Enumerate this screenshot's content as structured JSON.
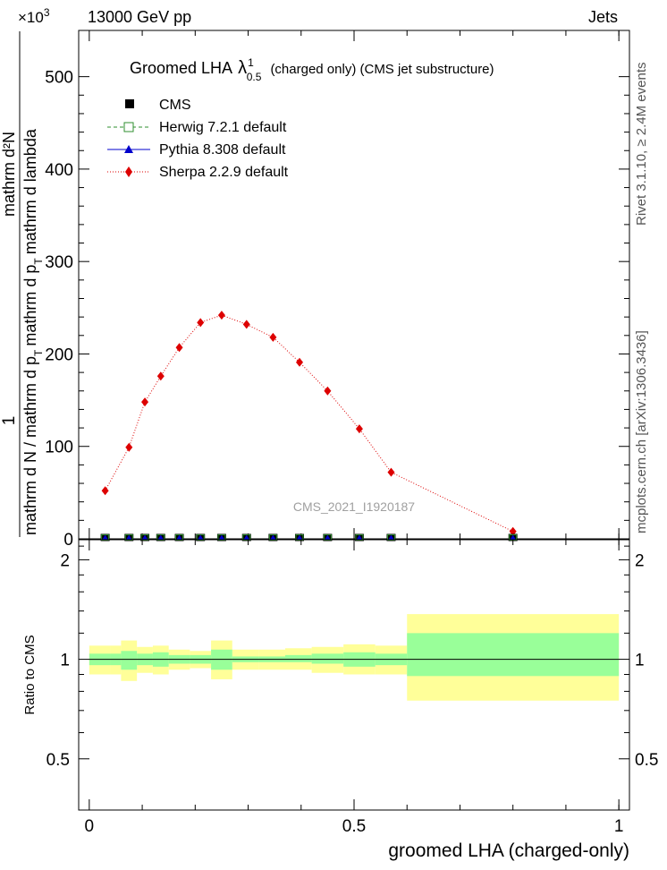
{
  "header": {
    "left": "13000 GeV pp",
    "right": "Jets",
    "exponent": "×10",
    "exponent_power": "3"
  },
  "side_text": {
    "rivet": "Rivet 3.1.10, ≥ 2.4M events",
    "mcplots": "mcplots.cern.ch [arXiv:1306.3436]"
  },
  "chart_data": [
    {
      "type": "line",
      "title": "Groomed LHA",
      "title_lambda": "λ",
      "title_sup": "1",
      "title_sub": "0.5",
      "title_suffix": "(charged only) (CMS jet substructure)",
      "ylabel_fraction_top": "1",
      "ylabel_bottom_lines": [
        "mathrm d N / mathrm d p",
        "T",
        "mathrm d p",
        "T",
        "mathrm d lambda"
      ],
      "ylabel_line1": "mathrm d N / mathrm d p",
      "ylabel_line1_sub": "T",
      "ylabel_line2": "mathrm d p",
      "ylabel_line2_sub": "T",
      "ylabel_line2_end": "mathrm d lambda",
      "ylabel_top_line": "mathrm d²N",
      "ylim": [
        0,
        550
      ],
      "y_unit_scale": 1000,
      "yticks": [
        0,
        100,
        200,
        300,
        400,
        500
      ],
      "ytick_labels": [
        "0",
        "100",
        "200",
        "300",
        "400",
        "500"
      ],
      "xlim": [
        -0.02,
        1.02
      ],
      "watermark": "CMS_2021_I1920187",
      "legend_position": "top-left",
      "legend": [
        {
          "name": "CMS",
          "color": "#000000",
          "marker": "square-filled"
        },
        {
          "name": "Herwig 7.2.1 default",
          "color": "#2f8f2f",
          "marker": "square-open",
          "dash": "dashed"
        },
        {
          "name": "Pythia 8.308 default",
          "color": "#0000cc",
          "marker": "triangle",
          "dash": "solid"
        },
        {
          "name": "Sherpa 2.2.9 default",
          "color": "#dd0000",
          "marker": "diamond",
          "dash": "dotted"
        }
      ],
      "x": [
        0.03,
        0.075,
        0.105,
        0.135,
        0.17,
        0.21,
        0.25,
        0.297,
        0.347,
        0.397,
        0.45,
        0.51,
        0.57,
        0.8
      ],
      "series": [
        {
          "name": "CMS",
          "values": [
            0.5,
            0.5,
            0.5,
            0.5,
            0.5,
            0.5,
            0.5,
            0.5,
            0.5,
            0.5,
            0.5,
            0.5,
            0.5,
            0.5
          ]
        },
        {
          "name": "Herwig 7.2.1 default",
          "values": [
            0.5,
            0.5,
            0.5,
            0.5,
            0.5,
            0.5,
            0.5,
            0.5,
            0.5,
            0.5,
            0.5,
            0.5,
            0.5,
            0.5
          ]
        },
        {
          "name": "Pythia 8.308 default",
          "values": [
            0.5,
            0.5,
            0.5,
            0.5,
            0.5,
            0.5,
            0.5,
            0.5,
            0.5,
            0.5,
            0.5,
            0.5,
            0.5,
            0.5
          ]
        },
        {
          "name": "Sherpa 2.2.9 default",
          "values": [
            52,
            99,
            148,
            176,
            207,
            234,
            242,
            232,
            218,
            191,
            160,
            119,
            72,
            8
          ],
          "errors": [
            3,
            3,
            4,
            4,
            4,
            4,
            4,
            4,
            4,
            3,
            3,
            3,
            2,
            2
          ]
        }
      ]
    },
    {
      "type": "area",
      "ylabel": "Ratio to CMS",
      "xlabel": "groomed LHA (charged-only)",
      "ylim": [
        0.35,
        2.3
      ],
      "yticks": [
        0.5,
        1,
        2
      ],
      "ytick_labels": [
        "0.5",
        "1",
        "2"
      ],
      "xticks": [
        0,
        0.5,
        1
      ],
      "xtick_labels": [
        "0",
        "0.5",
        "1"
      ],
      "xlim": [
        -0.02,
        1.02
      ],
      "bin_edges": [
        0.0,
        0.04,
        0.06,
        0.09,
        0.12,
        0.15,
        0.19,
        0.23,
        0.27,
        0.32,
        0.37,
        0.42,
        0.48,
        0.54,
        0.6,
        1.0
      ],
      "inner_band": {
        "color": "#99ff99",
        "low": [
          0.96,
          0.96,
          0.93,
          0.96,
          0.95,
          0.97,
          0.97,
          0.93,
          0.98,
          0.98,
          0.98,
          0.97,
          0.95,
          0.96,
          0.89
        ],
        "high": [
          1.04,
          1.04,
          1.06,
          1.04,
          1.05,
          1.03,
          1.03,
          1.07,
          1.02,
          1.02,
          1.03,
          1.04,
          1.05,
          1.04,
          1.2
        ]
      },
      "outer_band": {
        "color": "#ffff99",
        "low": [
          0.9,
          0.9,
          0.86,
          0.91,
          0.9,
          0.93,
          0.94,
          0.87,
          0.93,
          0.93,
          0.93,
          0.91,
          0.9,
          0.9,
          0.75
        ],
        "high": [
          1.1,
          1.1,
          1.14,
          1.09,
          1.1,
          1.07,
          1.06,
          1.14,
          1.07,
          1.07,
          1.08,
          1.09,
          1.11,
          1.1,
          1.37
        ]
      },
      "reference": 1
    }
  ]
}
